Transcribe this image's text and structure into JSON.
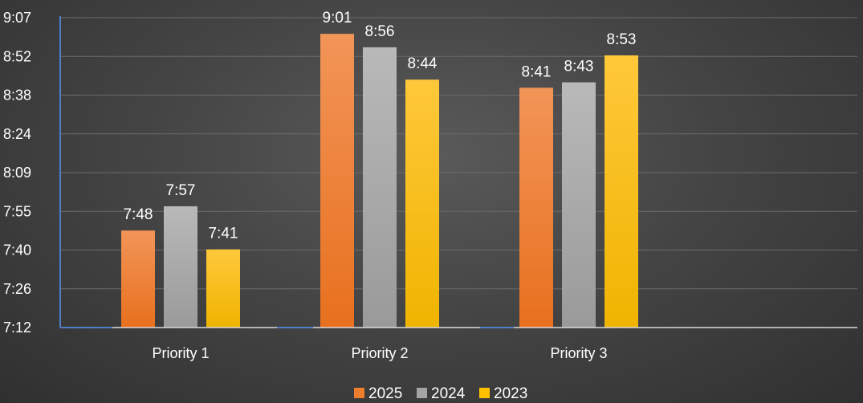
{
  "chart_data": {
    "type": "bar",
    "categories": [
      "Priority 1",
      "Priority 2",
      "Priority 3"
    ],
    "y_ticks": [
      "7:12",
      "7:26",
      "7:40",
      "7:55",
      "8:09",
      "8:24",
      "8:38",
      "8:52",
      "9:07"
    ],
    "ylim": [
      "7:12",
      "9:07"
    ],
    "grid": true,
    "legend_position": "bottom",
    "series": [
      {
        "name": "2025",
        "color": "#ef7d2e",
        "values": [
          "7:48",
          "9:01",
          "8:41"
        ]
      },
      {
        "name": "2024",
        "color": "#a5a5a5",
        "values": [
          "7:57",
          "8:56",
          "8:43"
        ]
      },
      {
        "name": "2023",
        "color": "#ffc000",
        "values": [
          "7:41",
          "8:44",
          "8:53"
        ]
      }
    ]
  }
}
